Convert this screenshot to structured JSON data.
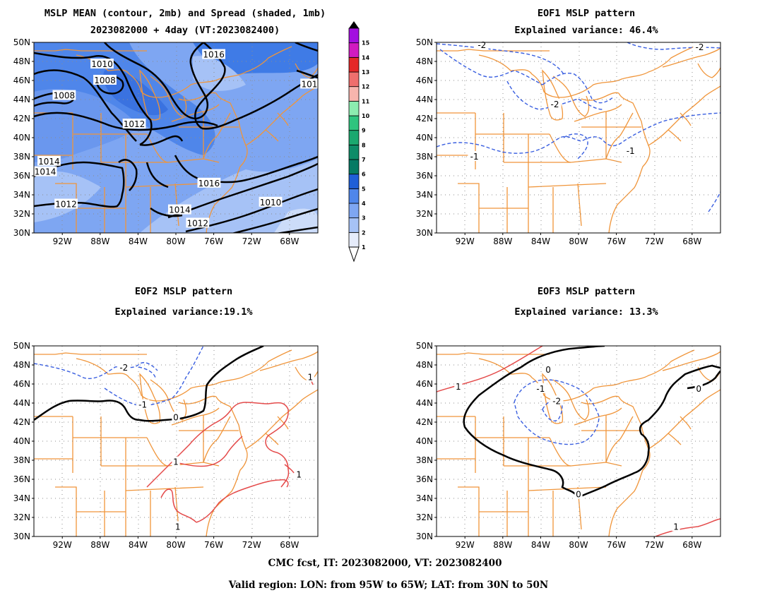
{
  "panels": [
    {
      "id": "mslp",
      "title1": "MSLP MEAN (contour, 2mb) and Spread (shaded, 1mb)",
      "title2": "2023082000 + 4day (VT:2023082400)",
      "contour_labels": [
        {
          "text": "1016",
          "lon": -76.0,
          "lat": 48.7
        },
        {
          "text": "1010",
          "lon": -87.8,
          "lat": 47.7
        },
        {
          "text": "1008",
          "lon": -87.5,
          "lat": 46.0
        },
        {
          "text": "1008",
          "lon": -91.8,
          "lat": 44.4
        },
        {
          "text": "1012",
          "lon": -84.4,
          "lat": 41.4
        },
        {
          "text": "1014",
          "lon": -93.4,
          "lat": 37.5
        },
        {
          "text": "1014",
          "lon": -93.8,
          "lat": 36.4
        },
        {
          "text": "1016",
          "lon": -76.5,
          "lat": 35.2
        },
        {
          "text": "1012",
          "lon": -91.6,
          "lat": 33.0
        },
        {
          "text": "1014",
          "lon": -79.6,
          "lat": 32.4
        },
        {
          "text": "1012",
          "lon": -77.7,
          "lat": 31.0
        },
        {
          "text": "1010",
          "lon": -70.0,
          "lat": 33.2
        },
        {
          "text": "101",
          "lon": -65.9,
          "lat": 45.6
        }
      ]
    },
    {
      "id": "eof1",
      "title1": "EOF1 MSLP pattern",
      "title2": "Explained variance: 46.4%",
      "contour_labels": [
        {
          "text": "-2",
          "lon": -82.5,
          "lat": 43.5
        },
        {
          "text": "-2",
          "lon": -67.2,
          "lat": 49.5
        },
        {
          "text": "-2",
          "lon": -90.2,
          "lat": 49.7
        },
        {
          "text": "-1",
          "lon": -91.0,
          "lat": 38.0
        },
        {
          "text": "-1",
          "lon": -74.5,
          "lat": 38.6
        }
      ]
    },
    {
      "id": "eof2",
      "title1": "EOF2 MSLP pattern",
      "title2": "Explained variance:19.1%",
      "contour_labels": [
        {
          "text": "-2",
          "lon": -85.5,
          "lat": 47.7
        },
        {
          "text": "-1",
          "lon": -83.5,
          "lat": 43.8
        },
        {
          "text": "0",
          "lon": -80.0,
          "lat": 42.5
        },
        {
          "text": "1",
          "lon": -80.0,
          "lat": 37.8
        },
        {
          "text": "1",
          "lon": -67.0,
          "lat": 36.5
        },
        {
          "text": "1",
          "lon": -79.8,
          "lat": 31.0
        },
        {
          "text": "1",
          "lon": -65.8,
          "lat": 46.7
        }
      ]
    },
    {
      "id": "eof3",
      "title1": "EOF3 MSLP pattern",
      "title2": "Explained variance: 13.3%",
      "contour_labels": [
        {
          "text": "0",
          "lon": -83.2,
          "lat": 47.5
        },
        {
          "text": "0",
          "lon": -67.3,
          "lat": 45.5
        },
        {
          "text": "0",
          "lon": -80.0,
          "lat": 34.4
        },
        {
          "text": "-1",
          "lon": -84.0,
          "lat": 45.5
        },
        {
          "text": "-2",
          "lon": -82.3,
          "lat": 44.2
        },
        {
          "text": "1",
          "lon": -92.7,
          "lat": 45.7
        },
        {
          "text": "1",
          "lon": -69.7,
          "lat": 31.0
        }
      ]
    }
  ],
  "axes": {
    "lon_ticks": [
      "92W",
      "88W",
      "84W",
      "80W",
      "76W",
      "72W",
      "68W"
    ],
    "lat_ticks": [
      "50N",
      "48N",
      "46N",
      "44N",
      "42N",
      "40N",
      "38N",
      "36N",
      "34N",
      "32N",
      "30N"
    ]
  },
  "colorbar": {
    "labels": [
      "1",
      "2",
      "3",
      "4",
      "5",
      "6",
      "7",
      "8",
      "9",
      "10",
      "11",
      "12",
      "13",
      "14",
      "15"
    ],
    "colors": [
      "#e6ecfb",
      "#a6c2f6",
      "#7ea6f2",
      "#4f86ea",
      "#1f5fd8",
      "#067a64",
      "#0d8c68",
      "#1aa86f",
      "#2ec47e",
      "#8cecb0",
      "#f7b5ad",
      "#ef6f6d",
      "#e42828",
      "#d11bc0",
      "#a30fe0"
    ]
  },
  "footer": {
    "line1": "CMC fcst, IT: 2023082000, VT: 2023082400",
    "line2": "Valid region: LON: from 95W to 65W; LAT: from 30N to 50N"
  },
  "colors": {
    "coast": "#f0953a",
    "negative": "#3a5fe0",
    "zero": "#000000",
    "positive": "#e44a4a",
    "grid": "#8c8c8c"
  }
}
